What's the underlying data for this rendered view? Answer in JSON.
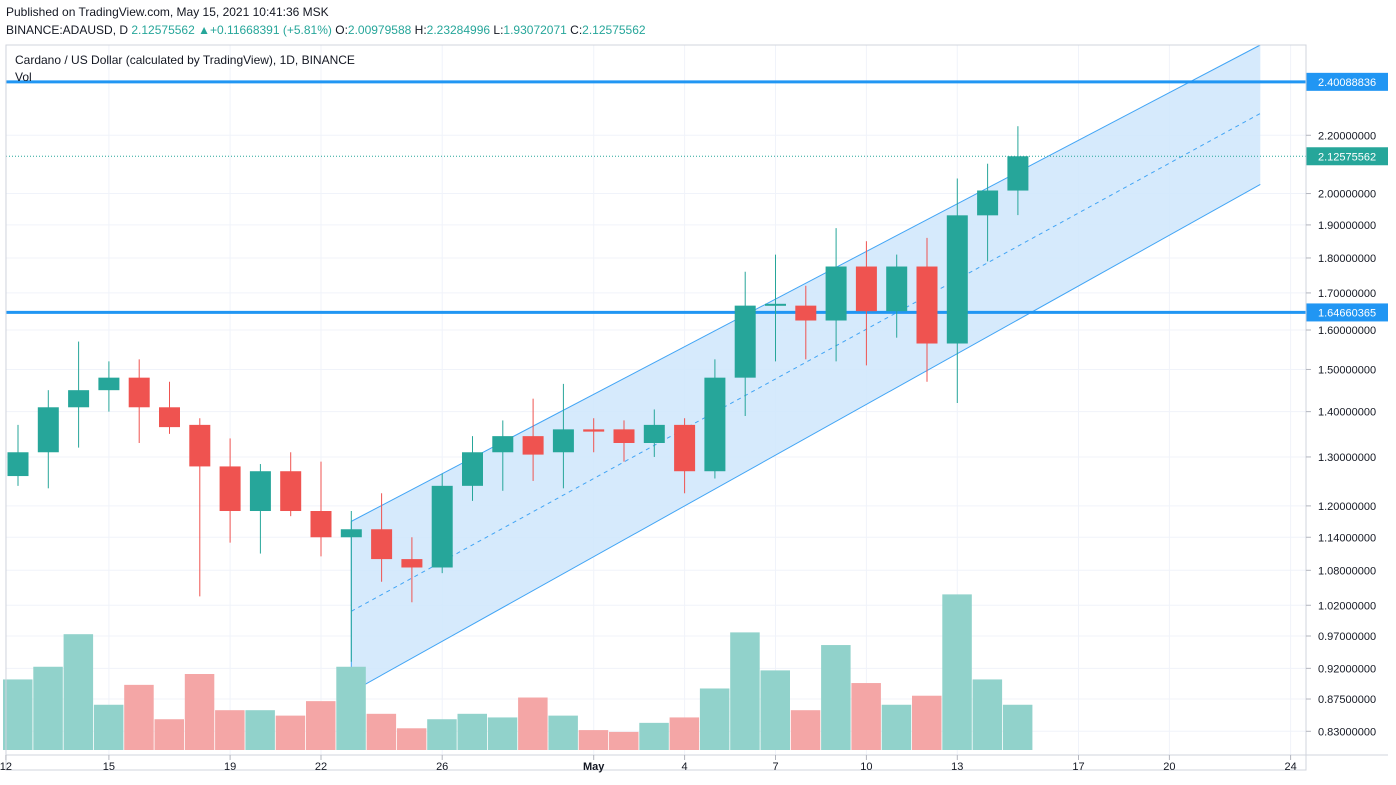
{
  "header": {
    "published": "Published on TradingView.com, May 15, 2021 10:41:36 MSK",
    "symbol": "BINANCE:ADAUSD, D",
    "last": "2.12575562",
    "change": "+0.11668391 (+5.81%)",
    "open_label": "O:",
    "open": "2.00979588",
    "high_label": "H:",
    "high": "2.23284996",
    "low_label": "L:",
    "low": "1.93072071",
    "close_label": "C:",
    "close": "2.12575562"
  },
  "chart_data": {
    "type": "candlestick",
    "title": "Cardano / US Dollar (calculated by TradingView), 1D, BINANCE",
    "volume_label": "Vol",
    "scale": "log",
    "colors": {
      "up": "#26a69a",
      "down": "#ef5350",
      "vol_up": "#91d2cb",
      "vol_down": "#f4a6a6",
      "level": "#2196f3",
      "channel_fill": "#cfe6fb",
      "channel_line": "#42a5f5"
    },
    "price_ticks": [
      "2.20000000",
      "2.00000000",
      "1.90000000",
      "1.80000000",
      "1.70000000",
      "1.60000000",
      "1.50000000",
      "1.40000000",
      "1.30000000",
      "1.20000000",
      "1.14000000",
      "1.08000000",
      "1.02000000",
      "0.97000000",
      "0.92000000",
      "0.87500000",
      "0.83000000"
    ],
    "date_ticks": [
      {
        "label": "12",
        "day": -0.4
      },
      {
        "label": "15",
        "day": 3
      },
      {
        "label": "19",
        "day": 7
      },
      {
        "label": "22",
        "day": 10
      },
      {
        "label": "26",
        "day": 14
      },
      {
        "label": "May",
        "day": 19
      },
      {
        "label": "4",
        "day": 22
      },
      {
        "label": "7",
        "day": 25
      },
      {
        "label": "10",
        "day": 28
      },
      {
        "label": "13",
        "day": 31
      },
      {
        "label": "17",
        "day": 35
      },
      {
        "label": "20",
        "day": 38
      },
      {
        "label": "24",
        "day": 42
      }
    ],
    "levels": [
      {
        "price": 2.40088836,
        "label": "2.40088836"
      },
      {
        "price": 1.64660365,
        "label": "1.64660365"
      }
    ],
    "last_price": {
      "price": 2.12575562,
      "label": "2.12575562"
    },
    "channel": {
      "start_day": 11,
      "end_day": 41,
      "top": [
        1.17,
        2.55
      ],
      "mid": [
        1.01,
        2.28
      ],
      "bottom": [
        0.885,
        2.03
      ]
    },
    "candles": [
      {
        "day": 0,
        "o": 1.26,
        "h": 1.37,
        "l": 1.24,
        "c": 1.31,
        "v": 39
      },
      {
        "day": 1,
        "o": 1.31,
        "h": 1.45,
        "l": 1.235,
        "c": 1.41,
        "v": 46
      },
      {
        "day": 2,
        "o": 1.41,
        "h": 1.57,
        "l": 1.32,
        "c": 1.45,
        "v": 64
      },
      {
        "day": 3,
        "o": 1.45,
        "h": 1.52,
        "l": 1.4,
        "c": 1.48,
        "v": 25
      },
      {
        "day": 4,
        "o": 1.48,
        "h": 1.525,
        "l": 1.33,
        "c": 1.41,
        "v": 36
      },
      {
        "day": 5,
        "o": 1.41,
        "h": 1.47,
        "l": 1.35,
        "c": 1.365,
        "v": 17
      },
      {
        "day": 6,
        "o": 1.37,
        "h": 1.385,
        "l": 1.035,
        "c": 1.28,
        "v": 42
      },
      {
        "day": 7,
        "o": 1.28,
        "h": 1.34,
        "l": 1.13,
        "c": 1.19,
        "v": 22
      },
      {
        "day": 8,
        "o": 1.19,
        "h": 1.285,
        "l": 1.11,
        "c": 1.27,
        "v": 22
      },
      {
        "day": 9,
        "o": 1.27,
        "h": 1.31,
        "l": 1.18,
        "c": 1.19,
        "v": 19
      },
      {
        "day": 10,
        "o": 1.19,
        "h": 1.29,
        "l": 1.105,
        "c": 1.14,
        "v": 27
      },
      {
        "day": 11,
        "o": 1.14,
        "h": 1.19,
        "l": 0.93,
        "c": 1.155,
        "v": 46
      },
      {
        "day": 12,
        "o": 1.155,
        "h": 1.225,
        "l": 1.06,
        "c": 1.1,
        "v": 20
      },
      {
        "day": 13,
        "o": 1.1,
        "h": 1.14,
        "l": 1.025,
        "c": 1.085,
        "v": 12
      },
      {
        "day": 14,
        "o": 1.085,
        "h": 1.265,
        "l": 1.075,
        "c": 1.24,
        "v": 17
      },
      {
        "day": 15,
        "o": 1.24,
        "h": 1.345,
        "l": 1.21,
        "c": 1.31,
        "v": 20
      },
      {
        "day": 16,
        "o": 1.31,
        "h": 1.38,
        "l": 1.23,
        "c": 1.345,
        "v": 18
      },
      {
        "day": 17,
        "o": 1.345,
        "h": 1.43,
        "l": 1.25,
        "c": 1.305,
        "v": 29
      },
      {
        "day": 18,
        "o": 1.31,
        "h": 1.465,
        "l": 1.235,
        "c": 1.36,
        "v": 19
      },
      {
        "day": 19,
        "o": 1.36,
        "h": 1.385,
        "l": 1.31,
        "c": 1.355,
        "v": 11
      },
      {
        "day": 20,
        "o": 1.36,
        "h": 1.38,
        "l": 1.29,
        "c": 1.33,
        "v": 10
      },
      {
        "day": 21,
        "o": 1.33,
        "h": 1.405,
        "l": 1.3,
        "c": 1.37,
        "v": 15
      },
      {
        "day": 22,
        "o": 1.37,
        "h": 1.385,
        "l": 1.225,
        "c": 1.27,
        "v": 18
      },
      {
        "day": 23,
        "o": 1.27,
        "h": 1.525,
        "l": 1.255,
        "c": 1.48,
        "v": 34
      },
      {
        "day": 24,
        "o": 1.48,
        "h": 1.76,
        "l": 1.39,
        "c": 1.665,
        "v": 65
      },
      {
        "day": 25,
        "o": 1.665,
        "h": 1.81,
        "l": 1.52,
        "c": 1.67,
        "v": 44
      },
      {
        "day": 26,
        "o": 1.665,
        "h": 1.72,
        "l": 1.525,
        "c": 1.625,
        "v": 22
      },
      {
        "day": 27,
        "o": 1.625,
        "h": 1.89,
        "l": 1.52,
        "c": 1.775,
        "v": 58
      },
      {
        "day": 28,
        "o": 1.775,
        "h": 1.85,
        "l": 1.51,
        "c": 1.65,
        "v": 37
      },
      {
        "day": 29,
        "o": 1.65,
        "h": 1.81,
        "l": 1.58,
        "c": 1.775,
        "v": 25
      },
      {
        "day": 30,
        "o": 1.775,
        "h": 1.86,
        "l": 1.47,
        "c": 1.565,
        "v": 30
      },
      {
        "day": 31,
        "o": 1.565,
        "h": 2.05,
        "l": 1.42,
        "c": 1.93,
        "v": 86
      },
      {
        "day": 32,
        "o": 1.93,
        "h": 2.1,
        "l": 1.79,
        "c": 2.01,
        "v": 39
      },
      {
        "day": 33,
        "o": 2.00979588,
        "h": 2.23284996,
        "l": 1.93072071,
        "c": 2.12575562,
        "v": 25
      }
    ]
  }
}
